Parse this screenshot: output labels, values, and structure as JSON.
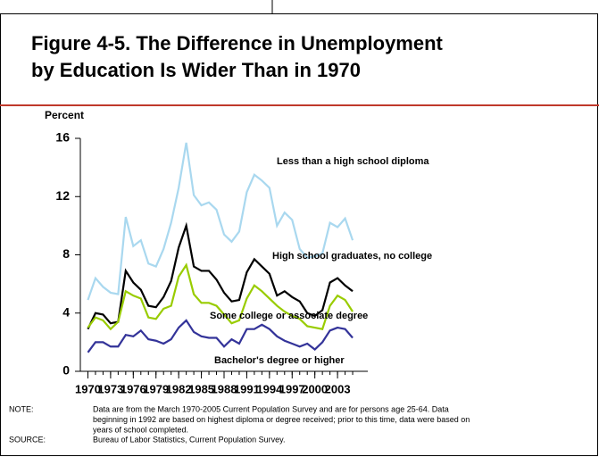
{
  "chart_data": {
    "type": "line",
    "title": [
      "Figure 4-5.  The Difference in Unemployment",
      "by Education Is Wider Than in 1970"
    ],
    "y_label": "Percent",
    "x": [
      1970,
      1971,
      1972,
      1973,
      1974,
      1975,
      1976,
      1977,
      1978,
      1979,
      1980,
      1981,
      1982,
      1983,
      1984,
      1985,
      1986,
      1987,
      1988,
      1989,
      1990,
      1991,
      1992,
      1993,
      1994,
      1995,
      1996,
      1997,
      1998,
      1999,
      2000,
      2001,
      2002,
      2003,
      2004,
      2005
    ],
    "series": [
      {
        "name": "Less than a high school diploma",
        "color": "#a9d8ef",
        "values": [
          4.9,
          6.4,
          5.8,
          5.4,
          5.3,
          10.6,
          8.6,
          9.0,
          7.4,
          7.2,
          8.4,
          10.2,
          12.6,
          15.7,
          12.1,
          11.4,
          11.6,
          11.1,
          9.4,
          8.9,
          9.6,
          12.3,
          13.5,
          13.1,
          12.6,
          10.0,
          10.9,
          10.4,
          8.4,
          7.8,
          7.9,
          8.1,
          10.2,
          9.9,
          10.5,
          9.0
        ]
      },
      {
        "name": "High school graduates, no college",
        "color": "#000000",
        "values": [
          2.9,
          4.0,
          3.9,
          3.3,
          3.4,
          6.9,
          6.1,
          5.6,
          4.5,
          4.4,
          5.1,
          6.2,
          8.5,
          10.0,
          7.2,
          6.9,
          6.9,
          6.3,
          5.4,
          4.8,
          4.9,
          6.8,
          7.7,
          7.2,
          6.7,
          5.2,
          5.5,
          5.1,
          4.8,
          4.0,
          3.8,
          4.2,
          6.1,
          6.4,
          5.9,
          5.5
        ]
      },
      {
        "name": "Some college or associate degree",
        "color": "#99cc00",
        "values": [
          3.0,
          3.7,
          3.5,
          2.9,
          3.4,
          5.5,
          5.2,
          5.0,
          3.7,
          3.6,
          4.3,
          4.5,
          6.5,
          7.3,
          5.3,
          4.7,
          4.7,
          4.5,
          3.9,
          3.3,
          3.5,
          5.0,
          5.9,
          5.5,
          5.0,
          4.5,
          4.1,
          3.8,
          3.6,
          3.1,
          3.0,
          2.9,
          4.5,
          5.2,
          4.9,
          4.1
        ]
      },
      {
        "name": "Bachelor's degree or higher",
        "color": "#333399",
        "values": [
          1.3,
          2.0,
          2.0,
          1.7,
          1.7,
          2.5,
          2.4,
          2.8,
          2.2,
          2.1,
          1.9,
          2.2,
          3.0,
          3.5,
          2.7,
          2.4,
          2.3,
          2.3,
          1.7,
          2.2,
          1.9,
          2.9,
          2.9,
          3.2,
          2.9,
          2.4,
          2.1,
          1.9,
          1.7,
          1.9,
          1.5,
          2.0,
          2.8,
          3.0,
          2.9,
          2.3
        ]
      }
    ],
    "xlim": [
      1969,
      2007
    ],
    "xticks": [
      1970,
      1973,
      1976,
      1979,
      1982,
      1985,
      1988,
      1991,
      1994,
      1997,
      2000,
      2003
    ],
    "ylim": [
      0,
      16
    ],
    "yticks": [
      0,
      4,
      8,
      12,
      16
    ],
    "note_label": "NOTE:",
    "note": [
      "Data are from the March 1970-2005 Current Population Survey and are for persons age 25-64.  Data",
      "beginning in 1992 are based on highest diploma or degree received; prior to this time, data were based on",
      "years of school completed."
    ],
    "source_label": "SOURCE:",
    "source": "Bureau of Labor Statistics, Current Population Survey."
  }
}
